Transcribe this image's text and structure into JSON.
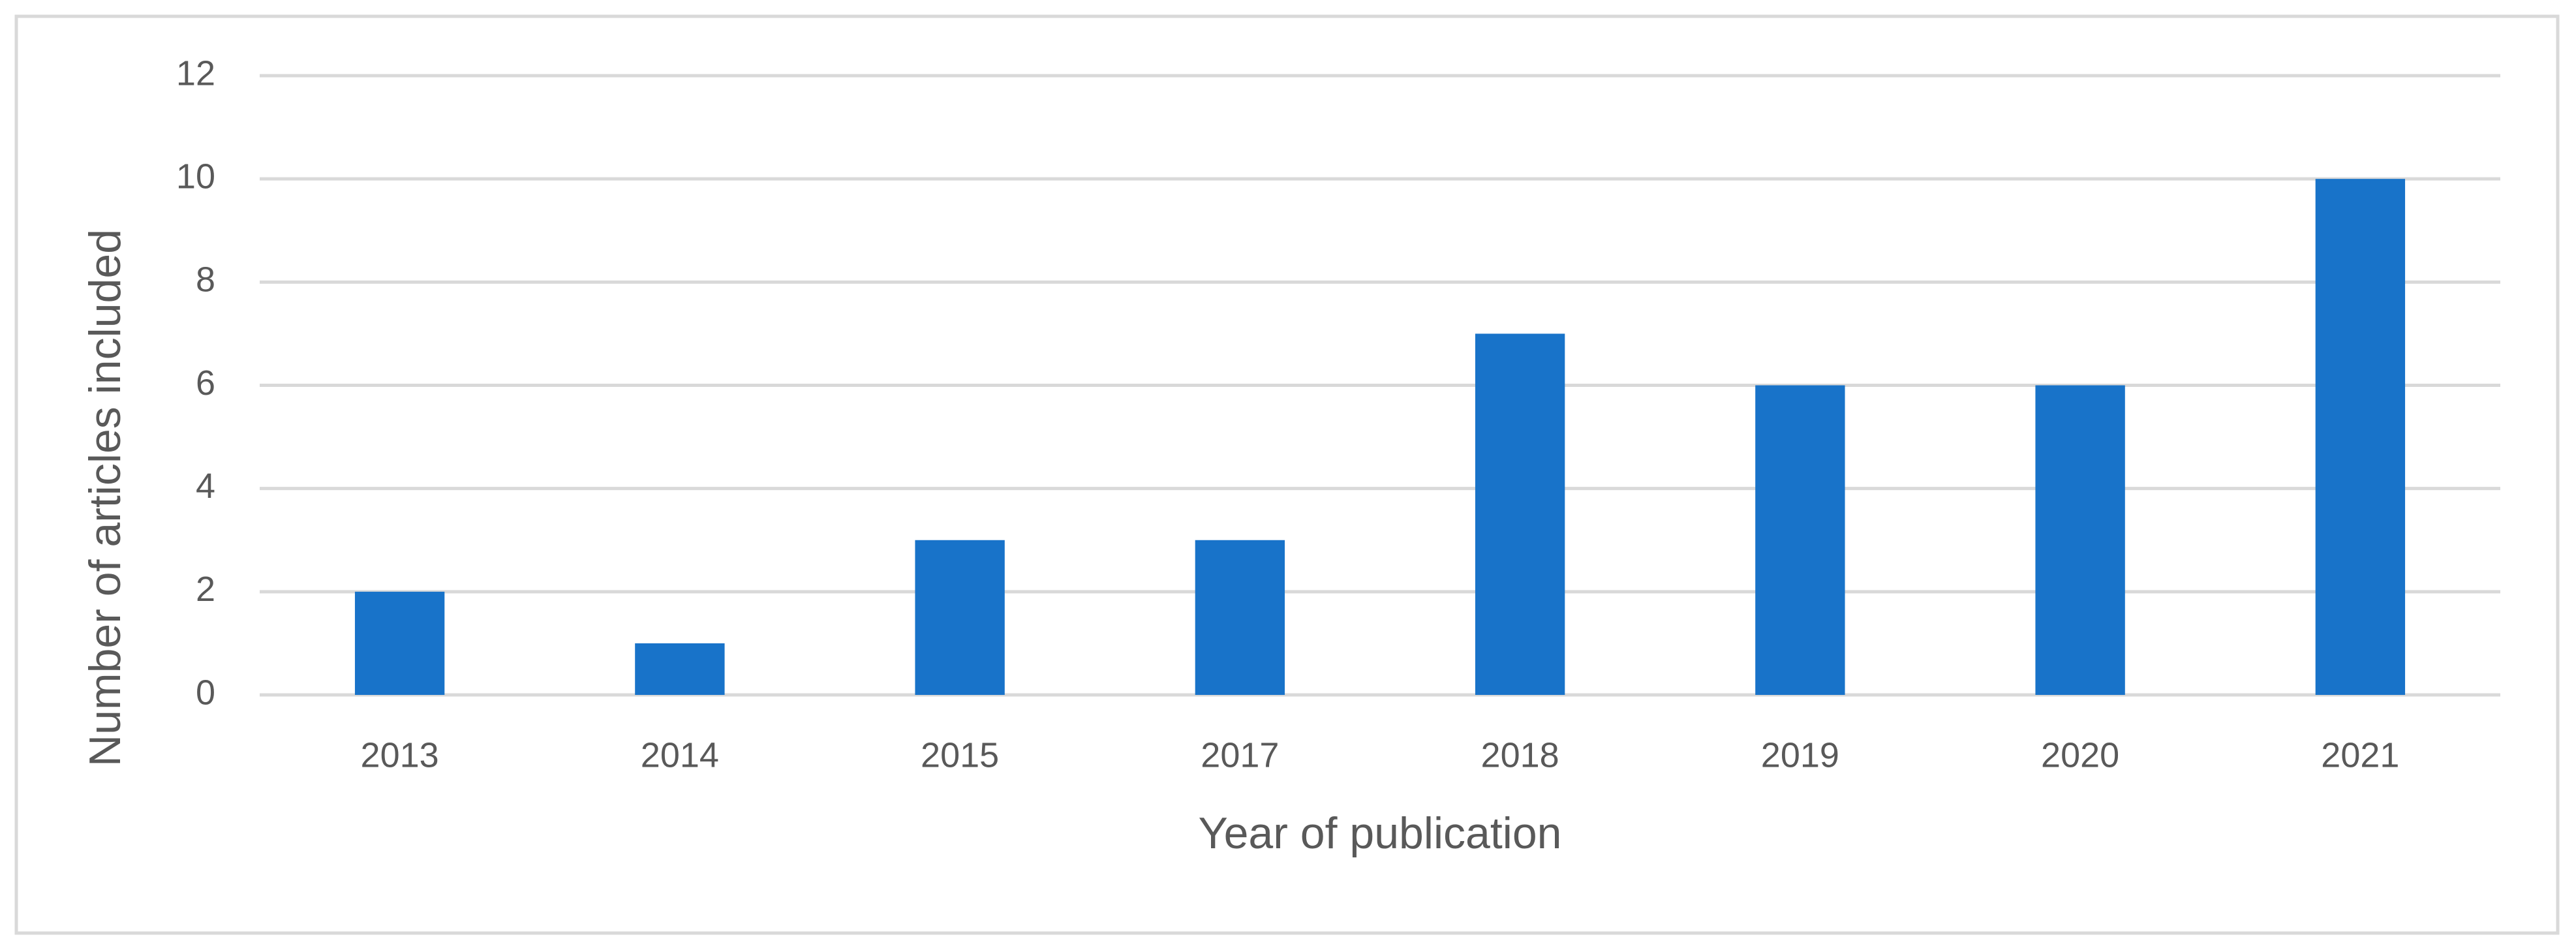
{
  "chart_data": {
    "type": "bar",
    "x_label": "Year of publication",
    "y_label": "Number of articles included",
    "categories": [
      "2013",
      "2014",
      "2015",
      "2017",
      "2018",
      "2019",
      "2020",
      "2021"
    ],
    "values": [
      2,
      1,
      3,
      3,
      7,
      6,
      6,
      10
    ],
    "color": "#1873c9",
    "ylim": [
      0,
      12
    ],
    "yticks": [
      0,
      2,
      4,
      6,
      8,
      10,
      12
    ],
    "grid": true
  }
}
